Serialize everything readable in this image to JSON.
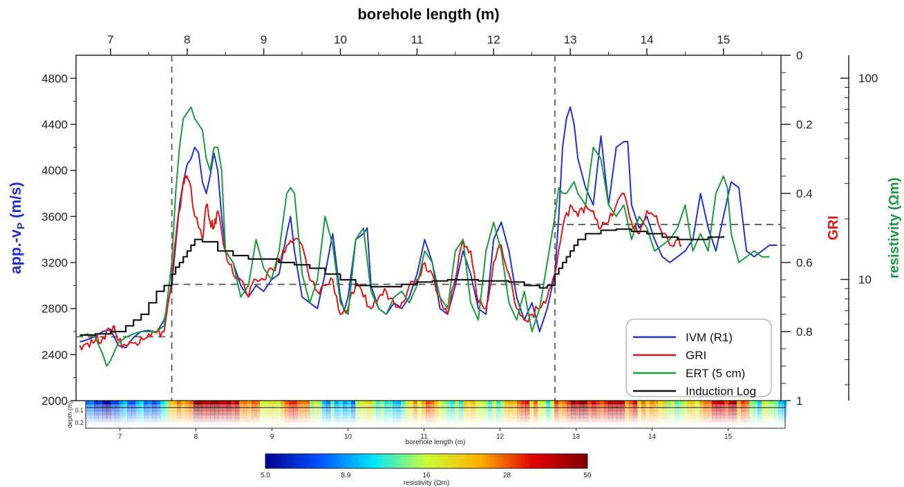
{
  "chart_data": [
    {
      "type": "line",
      "title": "borehole length (m)",
      "xlabel": "borehole length (m)",
      "xlim": [
        6.55,
        15.75
      ],
      "x_ticks": [
        7,
        8,
        9,
        10,
        11,
        12,
        13,
        14,
        15
      ],
      "y_axes": {
        "left": {
          "label_main": "app.-v",
          "label_sub": "P",
          "label_unit": " (m/s)",
          "range": [
            2000,
            5000
          ],
          "ticks": [
            2000,
            2400,
            2800,
            3200,
            3600,
            4000,
            4400,
            4800
          ]
        },
        "right_gri": {
          "label": "GRI",
          "range": [
            1,
            0
          ],
          "ticks": [
            "0",
            "0.2",
            "0.4",
            "0.6",
            "0.8",
            "1"
          ],
          "tick_values": [
            0,
            0.2,
            0.4,
            0.6,
            0.8,
            1
          ]
        },
        "right_resistivity": {
          "label": "resistivity (Ωm)",
          "scale": "log",
          "ticks": [
            "10",
            "100"
          ],
          "tick_values": [
            10,
            100
          ]
        }
      },
      "boundaries_x": [
        7.8,
        12.8
      ],
      "reference_levels": [
        {
          "x_range": [
            6.55,
            7.8
          ],
          "y": 2555
        },
        {
          "x_range": [
            7.8,
            12.8
          ],
          "y": 3010
        },
        {
          "x_range": [
            12.8,
            15.75
          ],
          "y": 3530
        }
      ],
      "legend": {
        "position": "bottom-right",
        "entries": [
          "IVM (R1)",
          "GRI",
          "ERT (5 cm)",
          "Induction Log"
        ]
      },
      "series": [
        {
          "name": "IVM (R1)",
          "color": "#1f2fd0",
          "x": [
            6.6,
            6.7,
            6.8,
            6.9,
            7.0,
            7.1,
            7.2,
            7.3,
            7.4,
            7.5,
            7.6,
            7.7,
            7.8,
            7.85,
            7.9,
            7.95,
            8.0,
            8.05,
            8.1,
            8.15,
            8.2,
            8.25,
            8.3,
            8.35,
            8.4,
            8.45,
            8.5,
            8.6,
            8.7,
            8.8,
            8.9,
            9.0,
            9.1,
            9.2,
            9.3,
            9.35,
            9.4,
            9.5,
            9.6,
            9.7,
            9.8,
            9.9,
            10.0,
            10.05,
            10.1,
            10.2,
            10.3,
            10.35,
            10.4,
            10.5,
            10.6,
            10.7,
            10.8,
            10.9,
            11.0,
            11.1,
            11.2,
            11.3,
            11.4,
            11.5,
            11.6,
            11.7,
            11.8,
            11.9,
            12.0,
            12.1,
            12.2,
            12.3,
            12.4,
            12.5,
            12.6,
            12.7,
            12.8,
            12.85,
            12.9,
            12.95,
            13.0,
            13.05,
            13.1,
            13.2,
            13.3,
            13.4,
            13.5,
            13.6,
            13.7,
            13.75,
            13.8,
            13.9,
            14.0,
            14.1,
            14.2,
            14.3,
            14.4,
            14.5,
            14.6,
            14.7,
            14.8,
            14.9,
            15.0,
            15.1,
            15.2,
            15.3,
            15.4,
            15.5,
            15.6,
            15.7
          ],
          "y": [
            2510,
            2530,
            2560,
            2600,
            2620,
            2480,
            2460,
            2550,
            2600,
            2610,
            2590,
            2700,
            3000,
            3350,
            3700,
            3900,
            4050,
            4100,
            4200,
            4150,
            3900,
            3800,
            3950,
            4150,
            4000,
            3600,
            3300,
            3200,
            3000,
            2900,
            3000,
            2950,
            3050,
            3100,
            3450,
            3600,
            3300,
            2900,
            2850,
            2800,
            3100,
            3450,
            2900,
            2780,
            2900,
            3400,
            3450,
            3500,
            3000,
            2800,
            2750,
            2850,
            2800,
            2900,
            3100,
            3400,
            3200,
            2800,
            2750,
            3000,
            3300,
            3100,
            2800,
            2750,
            3400,
            3550,
            3300,
            2900,
            2700,
            2850,
            2600,
            2800,
            3100,
            3600,
            4200,
            4450,
            4550,
            4400,
            4100,
            3850,
            3700,
            4300,
            3700,
            4200,
            4250,
            4250,
            3700,
            3500,
            3600,
            3400,
            3250,
            3200,
            3250,
            3300,
            3400,
            3800,
            3500,
            3300,
            3600,
            3900,
            3850,
            3300,
            3250,
            3300,
            3350,
            3350
          ]
        },
        {
          "name": "GRI",
          "color": "#e01515",
          "x": [
            6.6,
            6.7,
            6.8,
            6.9,
            7.0,
            7.05,
            7.1,
            7.2,
            7.3,
            7.4,
            7.5,
            7.6,
            7.7,
            7.8,
            7.85,
            7.9,
            7.95,
            8.0,
            8.05,
            8.1,
            8.2,
            8.25,
            8.3,
            8.35,
            8.4,
            8.5,
            8.6,
            8.7,
            8.8,
            8.9,
            9.0,
            9.1,
            9.2,
            9.3,
            9.4,
            9.5,
            9.6,
            9.7,
            9.8,
            9.9,
            10.0,
            10.1,
            10.2,
            10.3,
            10.4,
            10.5,
            10.6,
            10.7,
            10.8,
            10.9,
            11.0,
            11.1,
            11.2,
            11.3,
            11.4,
            11.5,
            11.6,
            11.7,
            11.8,
            11.9,
            12.0,
            12.1,
            12.2,
            12.3,
            12.4,
            12.5,
            12.6,
            12.7,
            12.8,
            12.9,
            13.0,
            13.1,
            13.2,
            13.3,
            13.4,
            13.5,
            13.6,
            13.7,
            13.8,
            13.9,
            14.0,
            14.1,
            14.2,
            14.3,
            14.4,
            14.45
          ],
          "y": [
            2480,
            2500,
            2520,
            2550,
            2600,
            2650,
            2520,
            2480,
            2500,
            2550,
            2580,
            2590,
            2600,
            3050,
            3400,
            3650,
            3900,
            3950,
            3850,
            3600,
            3400,
            3700,
            3550,
            3500,
            3650,
            3300,
            3100,
            3050,
            2900,
            3050,
            3050,
            3150,
            3200,
            3350,
            3400,
            3350,
            3050,
            2950,
            3000,
            3050,
            2750,
            2800,
            3000,
            2900,
            2800,
            2900,
            2950,
            2850,
            2850,
            3000,
            3050,
            3200,
            3100,
            2900,
            2750,
            3050,
            3400,
            3300,
            2850,
            2800,
            3200,
            3350,
            3100,
            2800,
            2700,
            2750,
            2800,
            2900,
            3100,
            3500,
            3700,
            3600,
            3700,
            3650,
            3500,
            3550,
            3700,
            3800,
            3550,
            3450,
            3650,
            3600,
            3450,
            3350,
            3400,
            3350
          ]
        },
        {
          "name": "ERT (5 cm)",
          "color": "#1a9a3c",
          "x": [
            6.6,
            6.7,
            6.8,
            6.9,
            6.95,
            7.0,
            7.1,
            7.2,
            7.3,
            7.4,
            7.5,
            7.6,
            7.7,
            7.8,
            7.85,
            7.9,
            7.95,
            8.0,
            8.05,
            8.1,
            8.15,
            8.2,
            8.25,
            8.3,
            8.35,
            8.4,
            8.45,
            8.5,
            8.6,
            8.7,
            8.8,
            8.9,
            9.0,
            9.1,
            9.2,
            9.3,
            9.35,
            9.4,
            9.5,
            9.6,
            9.7,
            9.8,
            9.9,
            10.0,
            10.1,
            10.2,
            10.3,
            10.4,
            10.5,
            10.6,
            10.7,
            10.8,
            10.9,
            11.0,
            11.1,
            11.2,
            11.3,
            11.4,
            11.5,
            11.6,
            11.7,
            11.8,
            11.9,
            12.0,
            12.1,
            12.2,
            12.3,
            12.4,
            12.5,
            12.6,
            12.7,
            12.8,
            12.85,
            12.9,
            12.95,
            13.0,
            13.05,
            13.1,
            13.2,
            13.3,
            13.4,
            13.5,
            13.6,
            13.7,
            13.8,
            13.9,
            14.0,
            14.1,
            14.2,
            14.3,
            14.4,
            14.5,
            14.6,
            14.7,
            14.8,
            14.9,
            15.0,
            15.05,
            15.1,
            15.2,
            15.3,
            15.4,
            15.5,
            15.6
          ],
          "y": [
            2560,
            2580,
            2550,
            2400,
            2300,
            2350,
            2500,
            2550,
            2580,
            2600,
            2600,
            2600,
            2650,
            3200,
            3800,
            4200,
            4450,
            4500,
            4550,
            4450,
            4400,
            4350,
            4100,
            4000,
            4200,
            4200,
            4000,
            3300,
            3200,
            2900,
            3000,
            3400,
            3150,
            3050,
            3300,
            3800,
            3850,
            3800,
            3100,
            2850,
            3050,
            3600,
            3350,
            2850,
            2750,
            3400,
            3500,
            2950,
            2800,
            2750,
            2900,
            2950,
            2850,
            3000,
            3300,
            3200,
            2900,
            2800,
            3300,
            3400,
            2850,
            2700,
            3300,
            3550,
            3300,
            2850,
            2700,
            2950,
            2600,
            2800,
            3200,
            3600,
            3850,
            3800,
            3800,
            3850,
            3900,
            3800,
            3700,
            4200,
            4100,
            3700,
            3600,
            3700,
            3400,
            3600,
            3500,
            3300,
            3350,
            3400,
            3500,
            3700,
            3300,
            3450,
            3300,
            3800,
            3950,
            3850,
            3450,
            3200,
            3250,
            3300,
            3250,
            3250
          ]
        },
        {
          "name": "Induction Log",
          "color": "#111111",
          "x": [
            6.6,
            6.8,
            7.0,
            7.2,
            7.3,
            7.4,
            7.5,
            7.6,
            7.7,
            7.8,
            7.85,
            7.9,
            7.95,
            8.0,
            8.05,
            8.1,
            8.2,
            8.4,
            8.6,
            8.8,
            9.0,
            9.2,
            9.4,
            9.6,
            9.8,
            10.0,
            10.2,
            10.4,
            10.6,
            10.8,
            11.0,
            11.2,
            11.4,
            11.6,
            11.8,
            12.0,
            12.2,
            12.4,
            12.6,
            12.7,
            12.8,
            12.85,
            12.9,
            12.95,
            13.0,
            13.05,
            13.1,
            13.2,
            13.4,
            13.6,
            13.8,
            14.0,
            14.2,
            14.4,
            14.6,
            14.8,
            15.0
          ],
          "y": [
            2570,
            2580,
            2600,
            2650,
            2700,
            2750,
            2850,
            2950,
            3000,
            3100,
            3160,
            3200,
            3250,
            3300,
            3350,
            3400,
            3380,
            3300,
            3260,
            3230,
            3230,
            3200,
            3180,
            3150,
            3100,
            3050,
            3000,
            2990,
            2990,
            3010,
            3030,
            3040,
            3050,
            3050,
            3040,
            3040,
            3030,
            3000,
            2980,
            3000,
            3100,
            3150,
            3200,
            3250,
            3300,
            3350,
            3400,
            3450,
            3480,
            3490,
            3470,
            3450,
            3420,
            3400,
            3400,
            3420,
            3430
          ]
        }
      ]
    },
    {
      "type": "heatmap",
      "xlabel": "borehole length (m)",
      "ylabel": "depth (m)",
      "xlim": [
        6.55,
        15.75
      ],
      "x_ticks": [
        "7",
        "8",
        "9",
        "10",
        "11",
        "12",
        "13",
        "14",
        "15"
      ],
      "y_ticks": [
        "0.1",
        "0.2"
      ],
      "colorbar": {
        "label": "resistivity (Ωm)",
        "scale": "log",
        "ticks": [
          "5.0",
          "8.9",
          "16",
          "28",
          "50"
        ],
        "colors": [
          "#00008f",
          "#0050ff",
          "#00e5ff",
          "#c8ff38",
          "#ffb000",
          "#e00000",
          "#800000"
        ]
      },
      "surface_resistivity_profile": {
        "x": [
          6.6,
          6.9,
          7.2,
          7.5,
          7.8,
          8.0,
          8.2,
          8.5,
          8.8,
          9.0,
          9.3,
          9.6,
          10.0,
          10.3,
          10.6,
          11.0,
          11.3,
          11.6,
          12.0,
          12.3,
          12.6,
          12.8,
          13.0,
          13.2,
          13.4,
          13.7,
          14.0,
          14.3,
          14.6,
          15.0,
          15.3,
          15.7
        ],
        "values": [
          8,
          6,
          10,
          7,
          30,
          45,
          40,
          35,
          20,
          15,
          30,
          12,
          9,
          18,
          12,
          25,
          10,
          20,
          14,
          30,
          12,
          35,
          45,
          40,
          38,
          30,
          22,
          15,
          18,
          40,
          14,
          12
        ]
      }
    }
  ]
}
